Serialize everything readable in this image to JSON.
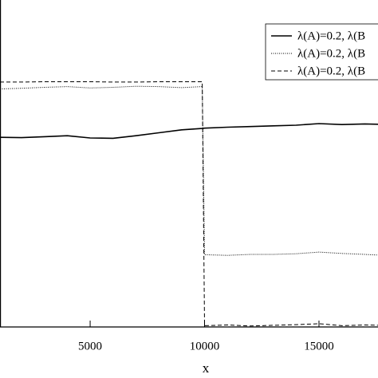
{
  "chart_data": {
    "type": "line",
    "x_label": "x",
    "x": [
      1060,
      2000,
      3000,
      4000,
      5000,
      6000,
      7000,
      8000,
      9000,
      9900,
      10000,
      11000,
      12000,
      13000,
      14000,
      15000,
      16000,
      17000,
      17580
    ],
    "series": [
      {
        "name": "λ(A)=0.2, λ(B",
        "color": "#000000",
        "dash": "solid",
        "values": [
          0.58,
          0.579,
          0.582,
          0.585,
          0.578,
          0.577,
          0.585,
          0.594,
          0.603,
          0.607,
          0.608,
          0.611,
          0.613,
          0.615,
          0.617,
          0.622,
          0.619,
          0.621,
          0.62
        ]
      },
      {
        "name": "λ(A)=0.2, λ(B",
        "color": "#000000",
        "dash": "dotted",
        "values": [
          0.728,
          0.73,
          0.733,
          0.735,
          0.731,
          0.733,
          0.736,
          0.735,
          0.732,
          0.735,
          0.221,
          0.219,
          0.222,
          0.222,
          0.224,
          0.229,
          0.225,
          0.222,
          0.22
        ]
      },
      {
        "name": "λ(A)=0.2, λ(B",
        "color": "#000000",
        "dash": "dashed",
        "values": [
          0.749,
          0.749,
          0.75,
          0.75,
          0.75,
          0.749,
          0.749,
          0.75,
          0.75,
          0.75,
          0.004,
          0.006,
          0.003,
          0.005,
          0.007,
          0.01,
          0.004,
          0.006,
          0.005
        ]
      }
    ],
    "xlim": [
      1060,
      17580
    ],
    "xticks": [
      5000,
      10000,
      15000
    ],
    "ylim": [
      0,
      1
    ]
  }
}
